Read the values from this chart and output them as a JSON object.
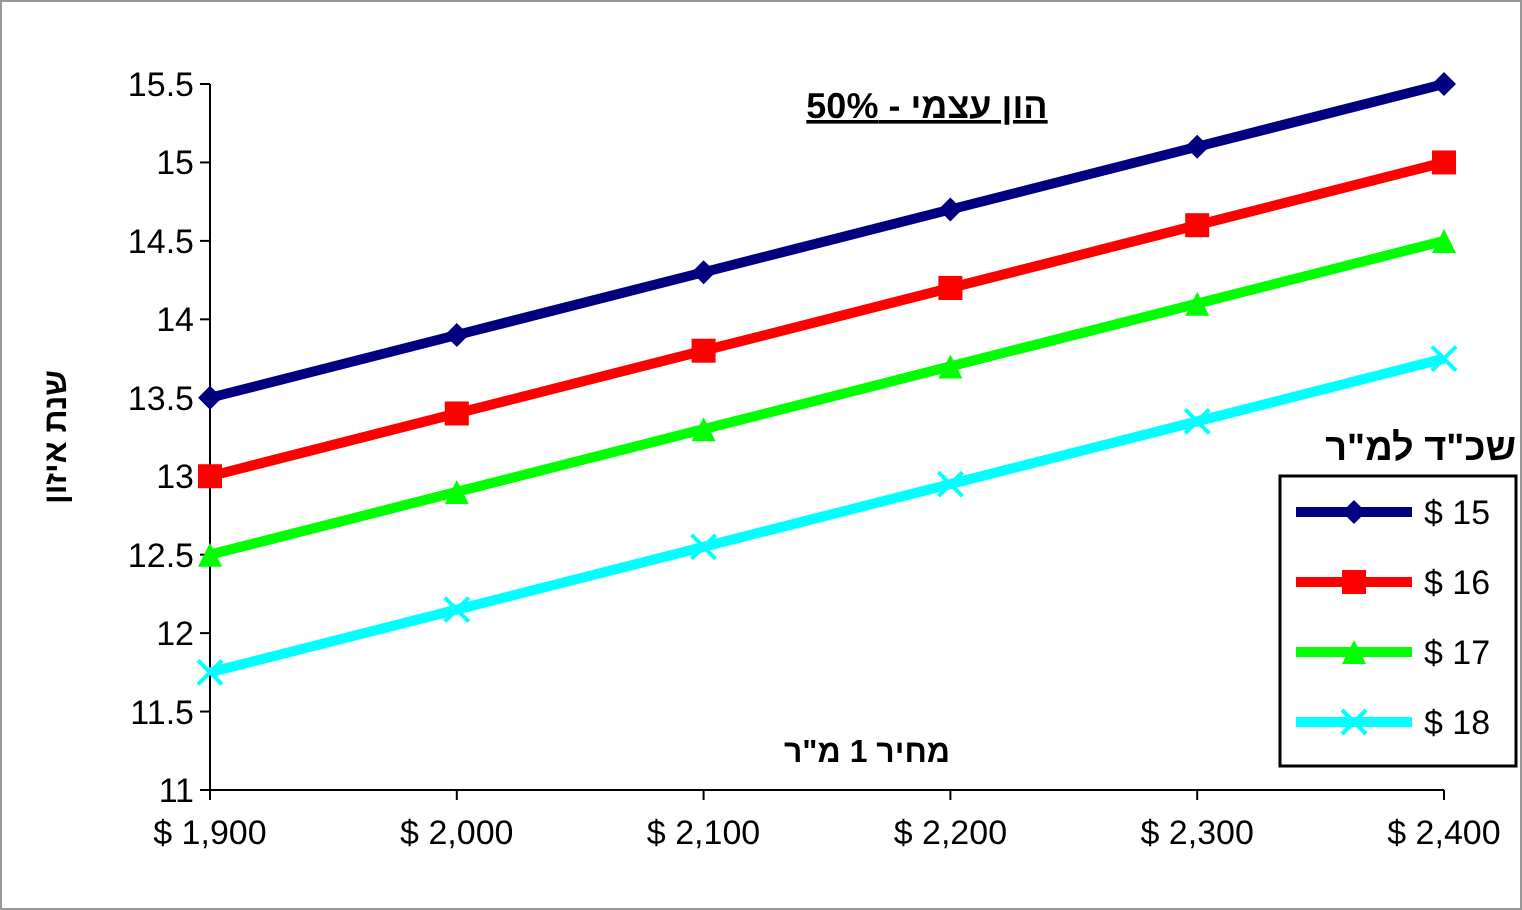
{
  "chart_data": {
    "type": "line",
    "title": "הון עצמי - 50%",
    "xlabel": "מחיר 1 מ\"ר",
    "ylabel": "שנת איזון",
    "legend_title": "שכ\"ד למ\"ר",
    "x": [
      1900,
      2000,
      2100,
      2200,
      2300,
      2400
    ],
    "series": [
      {
        "name": "$ 15",
        "color": "#000080",
        "marker": "diamond",
        "values": [
          13.5,
          13.9,
          14.3,
          14.7,
          15.1,
          15.5
        ]
      },
      {
        "name": "$ 16",
        "color": "#ff0000",
        "marker": "square",
        "values": [
          13,
          13.4,
          13.8,
          14.2,
          14.6,
          15
        ]
      },
      {
        "name": "$ 17",
        "color": "#00ff00",
        "marker": "triangle",
        "values": [
          12.5,
          12.9,
          13.3,
          13.7,
          14.1,
          14.5
        ]
      },
      {
        "name": "$ 18",
        "color": "#00ffff",
        "marker": "cross",
        "values": [
          11.75,
          12.15,
          12.55,
          12.95,
          13.35,
          13.75
        ]
      }
    ],
    "xlim": [
      1900,
      2400
    ],
    "ylim": [
      11,
      15.5
    ],
    "xticks": [
      {
        "value": 1900,
        "label": "$ 1,900"
      },
      {
        "value": 2000,
        "label": "$ 2,000"
      },
      {
        "value": 2100,
        "label": "$ 2,100"
      },
      {
        "value": 2200,
        "label": "$ 2,200"
      },
      {
        "value": 2300,
        "label": "$ 2,300"
      },
      {
        "value": 2400,
        "label": "$ 2,400"
      }
    ],
    "yticks": [
      11,
      11.5,
      12,
      12.5,
      13,
      13.5,
      14,
      14.5,
      15,
      15.5
    ],
    "grid": false,
    "legend": "right",
    "line_style": "solid"
  }
}
